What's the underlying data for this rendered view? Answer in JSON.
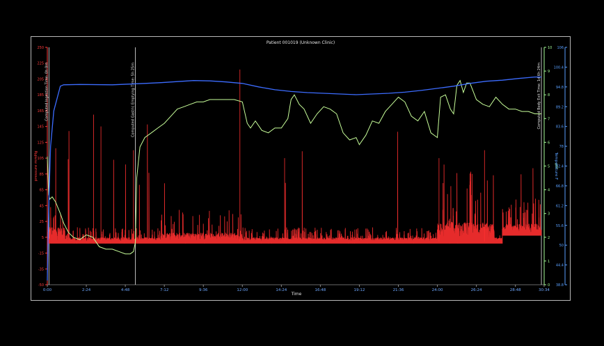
{
  "chart_data": {
    "type": "line",
    "title": "Patient 001019 (Unknown Clinic)",
    "xlabel": "Time",
    "x_ticks": [
      "0:00",
      "2:24",
      "4:48",
      "7:12",
      "9:36",
      "12:00",
      "14:24",
      "16:48",
      "19:12",
      "21:36",
      "24:00",
      "26:24",
      "28:48",
      "30:34"
    ],
    "xlim_hours": [
      0,
      30.57
    ],
    "y_left": {
      "label": "pressure mmHg",
      "ticks": [
        "250",
        "225",
        "205",
        "185",
        "165",
        "145",
        "125",
        "105",
        "85",
        "65",
        "45",
        "25",
        "5",
        "-15",
        "-35",
        "-50"
      ],
      "color": "#ff3b3b"
    },
    "y_right_inner": {
      "label": "pH",
      "ticks": [
        "10",
        "9",
        "8",
        "7",
        "6",
        "5",
        "4",
        "3",
        "2",
        "1",
        "0"
      ],
      "ylim": [
        0,
        10
      ],
      "color": "#a8ff9a"
    },
    "y_right_outer": {
      "label": "Temperature F",
      "ticks": [
        "106",
        "100.4",
        "94.8",
        "89.2",
        "83.6",
        "78",
        "72.4",
        "66.8",
        "61.2",
        "55.6",
        "50",
        "44.4",
        "38.8"
      ],
      "color": "#5aa0ff"
    },
    "annotations": [
      {
        "label": "Computed Ingestion Time: 0h 0m",
        "x_hours": 0.1
      },
      {
        "label": "Computed Gastric Emptying Time: 5h 25m",
        "x_hours": 5.42
      },
      {
        "label": "Computed Body Exit Time: 1d 6h 24m",
        "x_hours": 30.4
      }
    ],
    "series": [
      {
        "name": "pH",
        "color": "#c8ff9a",
        "x": [
          0,
          0.08,
          0.15,
          0.3,
          0.5,
          0.8,
          1.0,
          1.3,
          1.6,
          2.0,
          2.4,
          2.8,
          3.2,
          3.6,
          4.0,
          4.4,
          4.8,
          5.1,
          5.3,
          5.42,
          5.5,
          5.7,
          6.0,
          6.4,
          6.8,
          7.2,
          7.6,
          8.0,
          8.4,
          8.8,
          9.2,
          9.6,
          10.0,
          10.5,
          11.0,
          11.5,
          12.0,
          12.3,
          12.5,
          12.8,
          13.2,
          13.6,
          14.0,
          14.4,
          14.8,
          15.0,
          15.2,
          15.5,
          15.8,
          16.2,
          16.6,
          17.0,
          17.4,
          17.8,
          18.2,
          18.6,
          19.0,
          19.2,
          19.6,
          20.0,
          20.4,
          20.8,
          21.2,
          21.6,
          22.0,
          22.4,
          22.8,
          23.2,
          23.6,
          24.0,
          24.2,
          24.5,
          24.8,
          25.0,
          25.2,
          25.4,
          25.6,
          25.8,
          26.0,
          26.4,
          26.8,
          27.2,
          27.6,
          28.0,
          28.4,
          28.8,
          29.2,
          29.6,
          30.0,
          30.4
        ],
        "values": [
          5.4,
          3.8,
          3.6,
          3.7,
          3.5,
          3.0,
          2.6,
          2.2,
          2.0,
          1.9,
          2.1,
          2.0,
          1.6,
          1.5,
          1.5,
          1.4,
          1.3,
          1.3,
          1.4,
          1.8,
          4.5,
          5.8,
          6.2,
          6.4,
          6.6,
          6.8,
          7.1,
          7.4,
          7.5,
          7.6,
          7.7,
          7.7,
          7.8,
          7.8,
          7.8,
          7.8,
          7.7,
          6.8,
          6.6,
          6.9,
          6.5,
          6.4,
          6.6,
          6.6,
          7.0,
          7.8,
          8.0,
          7.6,
          7.4,
          6.8,
          7.2,
          7.5,
          7.4,
          7.2,
          6.4,
          6.1,
          6.2,
          5.9,
          6.3,
          6.9,
          6.8,
          7.3,
          7.6,
          7.9,
          7.7,
          7.1,
          6.9,
          7.3,
          6.4,
          6.2,
          7.9,
          8.0,
          7.4,
          7.2,
          8.4,
          8.6,
          8.1,
          8.5,
          8.5,
          7.8,
          7.6,
          7.5,
          7.9,
          7.6,
          7.4,
          7.4,
          7.3,
          7.3,
          7.2,
          7.2
        ]
      },
      {
        "name": "Temperature F",
        "color": "#3c6cff",
        "x": [
          0,
          0.08,
          0.2,
          0.4,
          0.6,
          0.8,
          1.0,
          2.0,
          4.0,
          5.0,
          6.0,
          7.0,
          8.0,
          9.0,
          10.0,
          11.0,
          12.0,
          13.0,
          14.0,
          15.0,
          16.0,
          17.0,
          18.0,
          19.0,
          20.0,
          21.0,
          22.0,
          23.0,
          24.0,
          25.0,
          26.0,
          27.0,
          28.0,
          29.0,
          30.0,
          30.4
        ],
        "values": [
          40.0,
          60.0,
          78.0,
          88.0,
          91.5,
          95.0,
          95.4,
          95.5,
          95.4,
          95.6,
          95.8,
          96.0,
          96.3,
          96.6,
          96.5,
          96.2,
          95.8,
          94.8,
          94.0,
          93.5,
          93.2,
          93.0,
          92.8,
          92.6,
          92.8,
          93.0,
          93.3,
          93.8,
          94.4,
          95.0,
          95.8,
          96.4,
          96.7,
          97.2,
          97.6,
          97.6
        ]
      },
      {
        "name": "pressure mmHg",
        "color": "#ff3030",
        "baseline": 5
      }
    ]
  }
}
